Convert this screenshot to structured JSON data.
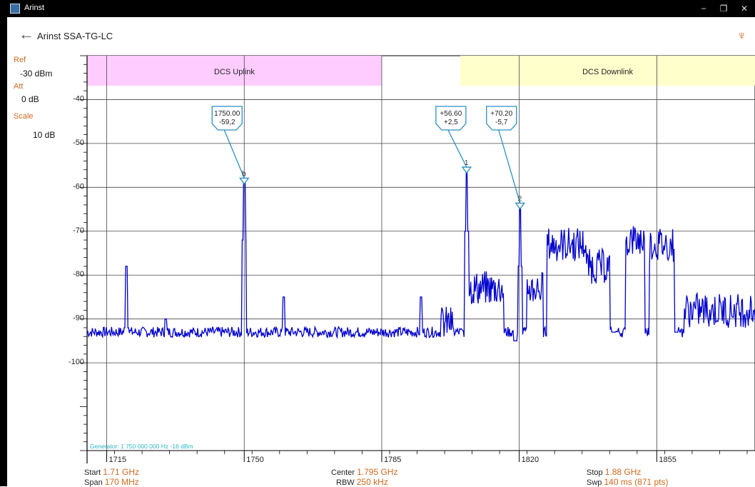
{
  "window": {
    "title": "Arinst",
    "minimize": "−",
    "maximize": "❐",
    "close": "✕"
  },
  "header": {
    "back_icon": "←",
    "device_name": "Arinst SSA-TG-LC",
    "usb_icon": "♆"
  },
  "settings": {
    "ref_label": "Ref",
    "ref_value": "-30 dBm",
    "att_label": "Att",
    "att_value": "0  dB",
    "scale_label": "Scale",
    "scale_value": "10  dB"
  },
  "colors": {
    "accent": "#d2691e",
    "trace": "#0000cc",
    "marker": "#2a8fc1",
    "uplink_band": "#ffccff",
    "downlink_band": "#ffffcc"
  },
  "chart_data": {
    "type": "line",
    "xlim": [
      1710,
      1880
    ],
    "ylim": [
      -120,
      -30
    ],
    "x_ticks": [
      1715,
      1750,
      1785,
      1820,
      1855
    ],
    "x_tick_labels": [
      "1715",
      "1750",
      "1785",
      "1820",
      "1855"
    ],
    "y_ticks": [
      -40,
      -50,
      -60,
      -70,
      -80,
      -90,
      -100
    ],
    "y_tick_labels": [
      "-40",
      "-50",
      "-60",
      "-70",
      "-80",
      "-90",
      "-100"
    ],
    "grid": true,
    "bands": [
      {
        "label": "DCS Uplink",
        "x_start": 1710,
        "x_end": 1785,
        "color": "#ffccff"
      },
      {
        "label": "DCS Downlink",
        "x_start": 1805,
        "x_end": 1880,
        "color": "#ffffcc"
      }
    ],
    "markers": [
      {
        "id": "b",
        "x": 1750.0,
        "y": -59.2,
        "line1": "1750.00",
        "line2": "-59,2"
      },
      {
        "id": "1",
        "x": 1806.6,
        "y": -56.7,
        "line1": "+56.60",
        "line2": "+2,5"
      },
      {
        "id": "2",
        "x": 1820.2,
        "y": -64.9,
        "line1": "+70.20",
        "line2": "-5,7"
      }
    ],
    "noise_floor": -93,
    "spikes": [
      [
        1720,
        -78
      ],
      [
        1730,
        -90
      ],
      [
        1750,
        -58
      ],
      [
        1760,
        -85
      ],
      [
        1795,
        -85
      ],
      [
        1806.6,
        -56
      ],
      [
        1820.2,
        -64
      ]
    ],
    "segments": [
      {
        "from": 1800,
        "to": 1803,
        "level": -91
      },
      {
        "from": 1806,
        "to": 1816,
        "level": -83
      },
      {
        "from": 1822,
        "to": 1826,
        "level": -83
      },
      {
        "from": 1827,
        "to": 1837,
        "level": -73
      },
      {
        "from": 1837,
        "to": 1843,
        "level": -78
      },
      {
        "from": 1847,
        "to": 1852,
        "level": -72
      },
      {
        "from": 1853,
        "to": 1860,
        "level": -73
      },
      {
        "from": 1862,
        "to": 1880,
        "level": -88
      }
    ],
    "dips": [
      [
        1819,
        -95
      ],
      [
        1844,
        -93
      ],
      [
        1860,
        -93
      ]
    ],
    "generator_text": "Generator:  1 750 000 000 Hz  -16 dBm"
  },
  "footer": {
    "start_label": "Start",
    "start_value": "1.71 GHz",
    "span_label": "Span",
    "span_value": "170 MHz",
    "center_label": "Center",
    "center_value": "1.795 GHz",
    "rbw_label": "RBW",
    "rbw_value": "250 kHz",
    "stop_label": "Stop",
    "stop_value": "1.88 GHz",
    "swp_label": "Swp",
    "swp_value": "140  ms (871 pts)"
  }
}
